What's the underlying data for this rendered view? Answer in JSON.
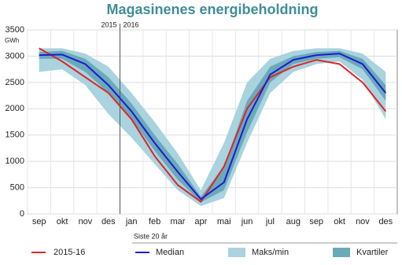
{
  "chart_data": {
    "type": "band-line",
    "title": "Magasinenes energibeholdning",
    "y_label": "GWh",
    "year_marks": [
      "2015",
      "2016"
    ],
    "year_break_index": 4,
    "categories": [
      "sep",
      "okt",
      "nov",
      "des",
      "jan",
      "feb",
      "mar",
      "apr",
      "mai",
      "jun",
      "jul",
      "aug",
      "sep",
      "okt",
      "nov",
      "des"
    ],
    "ylim": [
      0,
      3500
    ],
    "yticks": [
      0,
      500,
      1000,
      1500,
      2000,
      2500,
      3000,
      3500
    ],
    "grid": true,
    "band_group_label": "Siste 20 år",
    "bands": [
      {
        "name": "Maks/min",
        "color": "#a9d3de",
        "high": [
          3150,
          3150,
          3050,
          2800,
          2300,
          1750,
          1150,
          450,
          1350,
          2500,
          2950,
          3100,
          3150,
          3150,
          3050,
          2700
        ],
        "low": [
          2700,
          2750,
          2450,
          1900,
          1450,
          950,
          450,
          150,
          300,
          1350,
          2300,
          2700,
          2850,
          2900,
          2550,
          1800
        ]
      },
      {
        "name": "Kvartiler",
        "color": "#6aa9b9",
        "high": [
          3080,
          3100,
          2950,
          2600,
          2100,
          1500,
          950,
          330,
          900,
          2150,
          2800,
          3000,
          3080,
          3100,
          2950,
          2450
        ],
        "low": [
          2950,
          2950,
          2700,
          2300,
          1800,
          1200,
          650,
          220,
          450,
          1550,
          2500,
          2850,
          2950,
          2980,
          2750,
          2150
        ]
      }
    ],
    "series": [
      {
        "name": "2015-16",
        "color": "#e02525",
        "values": [
          3150,
          2900,
          2600,
          2300,
          1800,
          1100,
          550,
          230,
          900,
          2000,
          2600,
          2800,
          2930,
          2850,
          2500,
          1950
        ]
      },
      {
        "name": "Median",
        "color": "#1b1bd6",
        "values": [
          3020,
          3030,
          2850,
          2450,
          1950,
          1350,
          800,
          280,
          600,
          1800,
          2650,
          2930,
          3020,
          3050,
          2850,
          2300
        ]
      }
    ]
  }
}
